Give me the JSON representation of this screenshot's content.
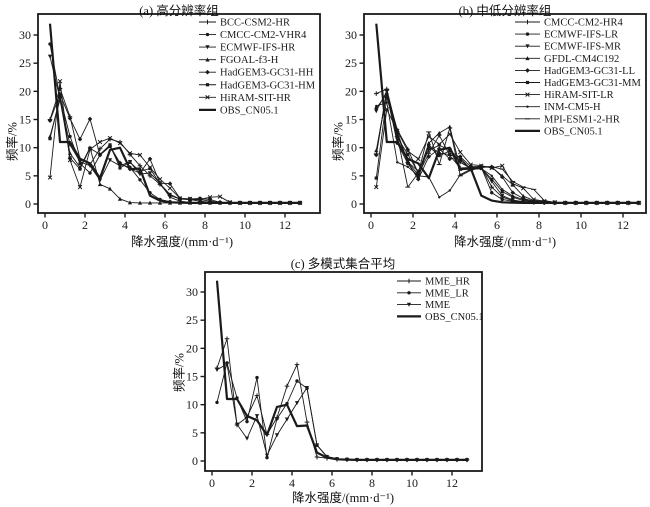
{
  "figure": {
    "background": "#ffffff",
    "line_color": "#1a1a1a",
    "obs_line_width": 2.2,
    "model_line_width": 0.9
  },
  "chart_data": [
    {
      "id": "a",
      "type": "line",
      "title": "(a) 高分辨率组",
      "xlabel": "降水强度/(mm·d⁻¹)",
      "ylabel": "频率/%",
      "xlim": [
        -0.35,
        13.75
      ],
      "ylim": [
        -1.6,
        33.7
      ],
      "xticks": [
        0,
        2,
        4,
        6,
        8,
        10,
        12
      ],
      "yticks": [
        0,
        5,
        10,
        15,
        20,
        25,
        30
      ],
      "grid": false,
      "legend_position": "top-right",
      "x": [
        0.25,
        0.75,
        1.25,
        1.75,
        2.25,
        2.75,
        3.25,
        3.75,
        4.25,
        4.75,
        5.25,
        5.75,
        6.25,
        6.75,
        7.25,
        7.75,
        8.25,
        8.75,
        9.25,
        9.75,
        10.25,
        10.75,
        11.25,
        11.75,
        12.25,
        12.75
      ],
      "series": [
        {
          "name": "BCC-CSM2-HR",
          "marker": "plus",
          "line_width": 0.9,
          "values": [
            15,
            20.5,
            15.5,
            8,
            7,
            9.8,
            11.5,
            11,
            8.8,
            6.8,
            5,
            3.5,
            1.5,
            0.9,
            0.8,
            0.8,
            0.5,
            0.3,
            0.2,
            0.2,
            0.2,
            0.2,
            0.2,
            0.2,
            0.2,
            0.2
          ]
        },
        {
          "name": "CMCC-CM2-VHR4",
          "marker": "circle",
          "line_width": 0.9,
          "values": [
            28.4,
            19,
            12,
            7.2,
            5.5,
            8.7,
            10.2,
            7,
            6.5,
            4.3,
            2,
            0.8,
            0.4,
            0.3,
            0.25,
            0.2,
            0.2,
            0.2,
            0.2,
            0.2,
            0.2,
            0.2,
            0.2,
            0.2,
            0.2,
            0.2
          ]
        },
        {
          "name": "ECMWF-IFS-HR",
          "marker": "tri-down",
          "line_width": 0.9,
          "values": [
            26.2,
            18.7,
            10.5,
            7.5,
            6.8,
            4.2,
            7.8,
            6.8,
            7.5,
            5.3,
            5.5,
            3.7,
            1.2,
            0.5,
            0.3,
            0.25,
            0.2,
            0.2,
            0.2,
            0.2,
            0.2,
            0.2,
            0.2,
            0.2,
            0.2,
            0.2
          ]
        },
        {
          "name": "FGOAL-f3-H",
          "marker": "tri-up",
          "line_width": 0.9,
          "values": [
            12,
            18.5,
            9,
            6.5,
            10,
            3.5,
            2.7,
            0.9,
            0.25,
            0.2,
            0.2,
            0.2,
            0.2,
            0.2,
            0.2,
            0.2,
            0.2,
            0.2,
            0.2,
            0.2,
            0.2,
            0.2,
            0.2,
            0.2,
            0.2,
            0.2
          ]
        },
        {
          "name": "HadGEM3-GC31-HH",
          "marker": "diamond",
          "line_width": 0.9,
          "values": [
            14.8,
            19.5,
            15.2,
            11.5,
            15.1,
            8.7,
            10.3,
            7.3,
            6.2,
            5.5,
            8,
            3.7,
            3.6,
            1,
            0.9,
            1,
            0.8,
            0.3,
            0.2,
            0.2,
            0.2,
            0.2,
            0.2,
            0.2,
            0.2,
            0.2
          ]
        },
        {
          "name": "HadGEM3-GC31-HM",
          "marker": "square",
          "line_width": 0.9,
          "values": [
            11.6,
            19,
            8.2,
            6.2,
            9.9,
            8.8,
            10.5,
            6.4,
            7.4,
            5.8,
            6.3,
            3.6,
            1.7,
            0.9,
            0.8,
            0.5,
            0.3,
            0.2,
            0.2,
            0.2,
            0.2,
            0.2,
            0.2,
            0.2,
            0.2,
            0.2
          ]
        },
        {
          "name": "HiRAM-SIT-HR",
          "marker": "cross",
          "line_width": 0.9,
          "values": [
            4.7,
            21.8,
            7.8,
            3,
            9.7,
            11,
            11.7,
            10.8,
            9,
            8.7,
            6.5,
            4.4,
            2.8,
            1,
            0.9,
            0.8,
            1.2,
            1.3,
            0.3,
            0.2,
            0.2,
            0.2,
            0.2,
            0.2,
            0.2,
            0.2
          ]
        },
        {
          "name": "OBS_CN05.1",
          "marker": "none",
          "line_width": 2.2,
          "values": [
            32,
            11,
            11,
            8,
            7.2,
            4.6,
            9.6,
            10,
            6.2,
            6.3,
            1.5,
            0.6,
            0.3,
            0.25,
            0.2,
            0.2,
            0.2,
            0.2,
            0.2,
            0.2,
            0.2,
            0.2,
            0.2,
            0.2,
            0.2,
            0.2
          ]
        }
      ]
    },
    {
      "id": "b",
      "type": "line",
      "title": "(b) 中低分辨率组",
      "xlabel": "降水强度/(mm·d⁻¹)",
      "ylabel": "频率/%",
      "xlim": [
        -0.33,
        13.1
      ],
      "ylim": [
        -1.6,
        33.7
      ],
      "xticks": [
        0,
        2,
        4,
        6,
        8,
        10,
        12
      ],
      "yticks": [
        0,
        5,
        10,
        15,
        20,
        25,
        30
      ],
      "grid": false,
      "legend_position": "top-right",
      "x": [
        0.25,
        0.75,
        1.25,
        1.75,
        2.25,
        2.75,
        3.25,
        3.75,
        4.25,
        4.75,
        5.25,
        5.75,
        6.25,
        6.75,
        7.25,
        7.75,
        8.25,
        8.75,
        9.25,
        9.75,
        10.25,
        10.75,
        11.25,
        11.75,
        12.25,
        12.75
      ],
      "series": [
        {
          "name": "CMCC-CM2-HR4",
          "marker": "plus",
          "line_width": 0.9,
          "values": [
            19.6,
            20.4,
            12.8,
            7.4,
            5.2,
            9,
            12.2,
            8.6,
            6.4,
            6.5,
            6.6,
            3,
            1.2,
            0.6,
            0.4,
            0.3,
            0.25,
            0.2,
            0.2,
            0.2,
            0.2,
            0.2,
            0.2,
            0.2,
            0.2,
            0.2
          ]
        },
        {
          "name": "ECMWF-IFS-LR",
          "marker": "circle",
          "line_width": 0.9,
          "values": [
            17,
            19.5,
            10.8,
            7.2,
            4.6,
            10.4,
            9,
            8.8,
            7.8,
            6.2,
            6.5,
            2,
            0.8,
            0.5,
            0.3,
            0.25,
            0.2,
            0.2,
            0.2,
            0.2,
            0.2,
            0.2,
            0.2,
            0.2,
            0.2,
            0.2
          ]
        },
        {
          "name": "ECMWF-IFS-MR",
          "marker": "tri-down",
          "line_width": 0.9,
          "values": [
            16.5,
            20,
            11.5,
            7.5,
            5.8,
            9.6,
            10.4,
            9.6,
            7.4,
            6.3,
            6.4,
            4,
            1.5,
            0.7,
            0.4,
            0.3,
            0.2,
            0.2,
            0.2,
            0.2,
            0.2,
            0.2,
            0.2,
            0.2,
            0.2,
            0.2
          ]
        },
        {
          "name": "GFDL-CM4C192",
          "marker": "tri-up",
          "line_width": 0.9,
          "values": [
            9.5,
            19.8,
            13.2,
            9.8,
            5.4,
            10.8,
            12.6,
            13.7,
            6.2,
            6.4,
            6.6,
            6.5,
            5,
            3.4,
            1.4,
            0.6,
            0.4,
            0.3,
            0.2,
            0.2,
            0.2,
            0.2,
            0.2,
            0.2,
            0.2,
            0.2
          ]
        },
        {
          "name": "HadGEM3-GC31-LL",
          "marker": "diamond",
          "line_width": 0.9,
          "values": [
            8.7,
            20.2,
            12.4,
            7.3,
            4.4,
            8.4,
            9.8,
            8,
            8.4,
            6.6,
            6.7,
            6.6,
            4.8,
            2,
            1,
            0.5,
            0.3,
            0.2,
            0.2,
            0.2,
            0.2,
            0.2,
            0.2,
            0.2,
            0.2,
            0.2
          ]
        },
        {
          "name": "HadGEM3-GC31-MM",
          "marker": "square",
          "line_width": 0.9,
          "values": [
            4.6,
            19,
            11.8,
            8.8,
            5.6,
            10.2,
            8.6,
            9.4,
            8.2,
            6.1,
            6.3,
            4.4,
            2.2,
            1.2,
            0.6,
            0.4,
            0.3,
            0.2,
            0.2,
            0.2,
            0.2,
            0.2,
            0.2,
            0.2,
            0.2,
            0.2
          ]
        },
        {
          "name": "HiRAM-SIT-LR",
          "marker": "cross",
          "line_width": 0.9,
          "values": [
            3,
            16.8,
            13,
            9.4,
            8,
            12,
            10.6,
            12.4,
            9.2,
            7,
            6.8,
            6.4,
            6.8,
            3.6,
            2.8,
            0.8,
            0.5,
            0.3,
            0.2,
            0.2,
            0.2,
            0.2,
            0.2,
            0.2,
            0.2,
            0.2
          ]
        },
        {
          "name": "INM-CM5-H",
          "marker": "dot",
          "line_width": 0.9,
          "values": [
            17.4,
            18,
            7.4,
            6.6,
            5,
            4.8,
            1.2,
            2.4,
            5.2,
            6.2,
            6.3,
            5,
            2.6,
            1.4,
            0.8,
            0.5,
            0.3,
            0.2,
            0.2,
            0.2,
            0.2,
            0.2,
            0.2,
            0.2,
            0.2,
            0.2
          ]
        },
        {
          "name": "MPI-ESM1-2-HR",
          "marker": "dash",
          "line_width": 0.9,
          "values": [
            8.9,
            20.3,
            12,
            3,
            5.5,
            12.8,
            7,
            13.5,
            5,
            6,
            6.5,
            6.6,
            6.2,
            4,
            3,
            2.6,
            0.6,
            0.3,
            0.2,
            0.2,
            0.2,
            0.2,
            0.2,
            0.2,
            0.2,
            0.2
          ]
        },
        {
          "name": "OBS_CN05.1",
          "marker": "none",
          "line_width": 2.2,
          "values": [
            32,
            11,
            11,
            8,
            7.2,
            4.6,
            9.6,
            10,
            6.2,
            6.3,
            1.5,
            0.6,
            0.3,
            0.25,
            0.2,
            0.2,
            0.2,
            0.2,
            0.2,
            0.2,
            0.2,
            0.2,
            0.2,
            0.2,
            0.2,
            0.2
          ]
        }
      ]
    },
    {
      "id": "c",
      "type": "line",
      "title": "(c) 多模式集合平均",
      "xlabel": "降水强度/(mm·d⁻¹)",
      "ylabel": "频率/%",
      "xlim": [
        -0.35,
        13.5
      ],
      "ylim": [
        -1.78,
        33.55
      ],
      "xticks": [
        0,
        2,
        4,
        6,
        8,
        10,
        12
      ],
      "yticks": [
        0,
        5,
        10,
        15,
        20,
        25,
        30
      ],
      "grid": false,
      "legend_position": "top-right",
      "x": [
        0.25,
        0.75,
        1.25,
        1.75,
        2.25,
        2.75,
        3.25,
        3.75,
        4.25,
        4.75,
        5.25,
        5.75,
        6.25,
        6.75,
        7.25,
        7.75,
        8.25,
        8.75,
        9.25,
        9.75,
        10.25,
        10.75,
        11.25,
        11.75,
        12.25,
        12.75
      ],
      "series": [
        {
          "name": "MME_HR",
          "marker": "plus",
          "line_width": 0.9,
          "values": [
            16.5,
            21.7,
            6.4,
            7.8,
            11.6,
            4.7,
            7.7,
            13.3,
            17.1,
            6.9,
            0.7,
            0.5,
            0.3,
            0.25,
            0.2,
            0.2,
            0.2,
            0.2,
            0.2,
            0.2,
            0.2,
            0.2,
            0.2,
            0.2,
            0.2,
            0.2
          ]
        },
        {
          "name": "MME_LR",
          "marker": "circle",
          "line_width": 0.9,
          "values": [
            10.4,
            17.4,
            11.2,
            7,
            14.8,
            0.6,
            7.5,
            10.2,
            14.2,
            12.9,
            2.8,
            0.8,
            0.4,
            0.25,
            0.2,
            0.2,
            0.2,
            0.2,
            0.2,
            0.2,
            0.2,
            0.2,
            0.2,
            0.2,
            0.2,
            0.2
          ]
        },
        {
          "name": "MME",
          "marker": "tri-down",
          "line_width": 0.9,
          "values": [
            16.2,
            17.2,
            6.5,
            4,
            8,
            1,
            4.6,
            7.4,
            10.3,
            13,
            2.8,
            0.7,
            0.35,
            0.25,
            0.2,
            0.2,
            0.2,
            0.2,
            0.2,
            0.2,
            0.2,
            0.2,
            0.2,
            0.2,
            0.2,
            0.2
          ]
        },
        {
          "name": "OBS_CN05.1",
          "marker": "none",
          "line_width": 2.2,
          "values": [
            32,
            11,
            11,
            8,
            7.2,
            4.6,
            9.6,
            10,
            6.2,
            6.3,
            1.5,
            0.6,
            0.3,
            0.25,
            0.2,
            0.2,
            0.2,
            0.2,
            0.2,
            0.2,
            0.2,
            0.2,
            0.2,
            0.2,
            0.2,
            0.2
          ]
        }
      ]
    }
  ]
}
